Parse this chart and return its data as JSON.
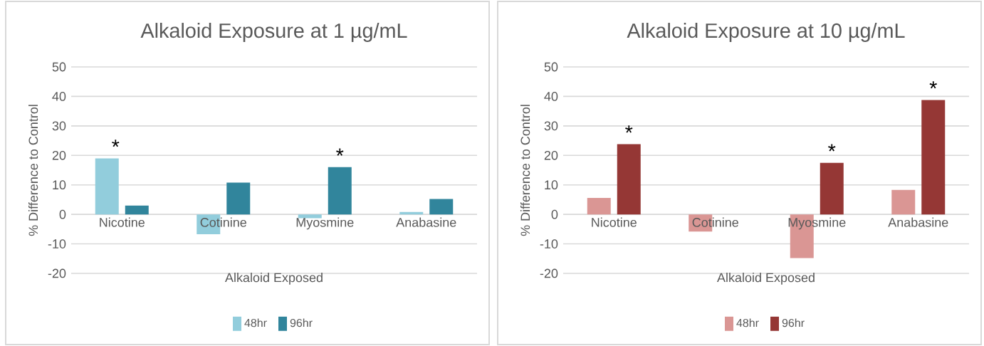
{
  "chart_data": [
    {
      "type": "bar",
      "title": "Alkaloid Exposure at 1 µg/mL",
      "xlabel": "Alkaloid Exposed",
      "ylabel": "% Difference to Control",
      "categories": [
        "Nicotine",
        "Cotinine",
        "Myosmine",
        "Anabasine"
      ],
      "series": [
        {
          "name": "48hr",
          "color": "#92cddc",
          "values": [
            19,
            -6.7,
            -1.3,
            0.8
          ]
        },
        {
          "name": "96hr",
          "color": "#31859c",
          "values": [
            3,
            10.8,
            16,
            5.2
          ]
        }
      ],
      "ylim": [
        -20,
        50
      ],
      "yticks": [
        -20,
        -10,
        0,
        10,
        20,
        30,
        40,
        50
      ],
      "grid": "y",
      "legend": "bottom",
      "annotations": [
        {
          "text": "*",
          "x": "Nicotine",
          "y": 19
        },
        {
          "text": "*",
          "x": "Myosmine",
          "y": 16
        }
      ]
    },
    {
      "type": "bar",
      "title": "Alkaloid Exposure at 10 µg/mL",
      "xlabel": "Alkaloid Exposed",
      "ylabel": "% Difference to Control",
      "categories": [
        "Nicotine",
        "Cotinine",
        "Myosmine",
        "Anabasine"
      ],
      "series": [
        {
          "name": "48hr",
          "color": "#da9694",
          "values": [
            5.6,
            -5.8,
            -14.8,
            8.3
          ]
        },
        {
          "name": "96hr",
          "color": "#953735",
          "values": [
            23.8,
            null,
            17.5,
            38.8
          ]
        }
      ],
      "ylim": [
        -20,
        50
      ],
      "yticks": [
        -20,
        -10,
        0,
        10,
        20,
        30,
        40,
        50
      ],
      "grid": "y",
      "legend": "bottom",
      "annotations": [
        {
          "text": "*",
          "x": "Nicotine",
          "y": 23.8
        },
        {
          "text": "*",
          "x": "Myosmine",
          "y": 17.5
        },
        {
          "text": "*",
          "x": "Anabasine",
          "y": 38.8
        }
      ]
    }
  ]
}
